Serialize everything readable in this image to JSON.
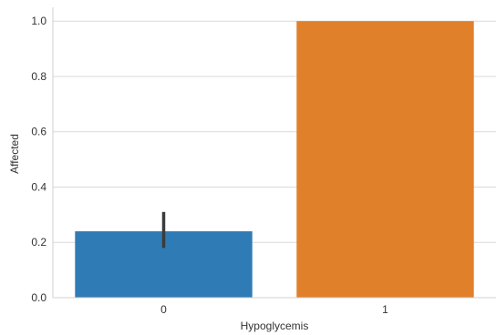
{
  "chart_data": {
    "type": "bar",
    "title": "",
    "xlabel": "Hypoglycemis",
    "ylabel": "Affected",
    "categories": [
      "0",
      "1"
    ],
    "values": [
      0.24,
      1.0
    ],
    "error_bars": [
      {
        "low": 0.18,
        "high": 0.31
      },
      null
    ],
    "ylim": [
      0,
      1.05
    ],
    "yticks": [
      0.0,
      0.2,
      0.4,
      0.6,
      0.8,
      1.0
    ],
    "ytick_labels": [
      "0.0",
      "0.2",
      "0.4",
      "0.6",
      "0.8",
      "1.0"
    ],
    "grid": "horizontal",
    "colors": [
      "#2f7bb5",
      "#e0802b"
    ],
    "error_bar_color": "#3c3c3c",
    "grid_color": "#d9d9d9",
    "background": "#ffffff",
    "axes_edge_color": "#d0d0d0",
    "text_color": "#333333"
  }
}
